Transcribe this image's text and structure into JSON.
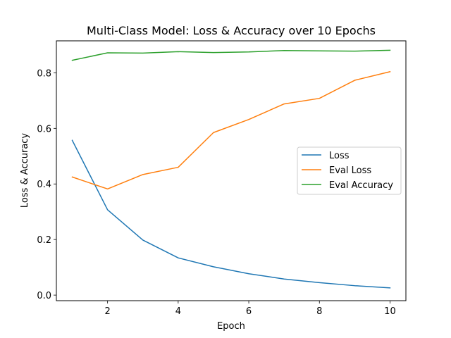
{
  "chart_data": {
    "type": "line",
    "title": "Multi-Class Model: Loss & Accuracy over 10 Epochs",
    "xlabel": "Epoch",
    "ylabel": "Loss & Accuracy",
    "x": [
      1,
      2,
      3,
      4,
      5,
      6,
      7,
      8,
      9,
      10
    ],
    "xlim": [
      0.55,
      10.45
    ],
    "ylim": [
      -0.02,
      0.915
    ],
    "xticks": [
      2,
      4,
      6,
      8,
      10
    ],
    "xtick_labels": [
      "2",
      "4",
      "6",
      "8",
      "10"
    ],
    "yticks": [
      0.0,
      0.2,
      0.4,
      0.6,
      0.8
    ],
    "ytick_labels": [
      "0.0",
      "0.2",
      "0.4",
      "0.6",
      "0.8"
    ],
    "grid": false,
    "legend_position": "center-right",
    "series": [
      {
        "name": "Loss",
        "color": "#1f77b4",
        "values": [
          0.557,
          0.307,
          0.198,
          0.134,
          0.102,
          0.077,
          0.058,
          0.045,
          0.034,
          0.026
        ]
      },
      {
        "name": "Eval Loss",
        "color": "#ff7f0e",
        "values": [
          0.425,
          0.382,
          0.434,
          0.46,
          0.585,
          0.632,
          0.688,
          0.708,
          0.773,
          0.804
        ]
      },
      {
        "name": "Eval Accuracy",
        "color": "#2ca02c",
        "values": [
          0.845,
          0.872,
          0.871,
          0.876,
          0.873,
          0.875,
          0.88,
          0.879,
          0.878,
          0.881
        ]
      }
    ]
  }
}
